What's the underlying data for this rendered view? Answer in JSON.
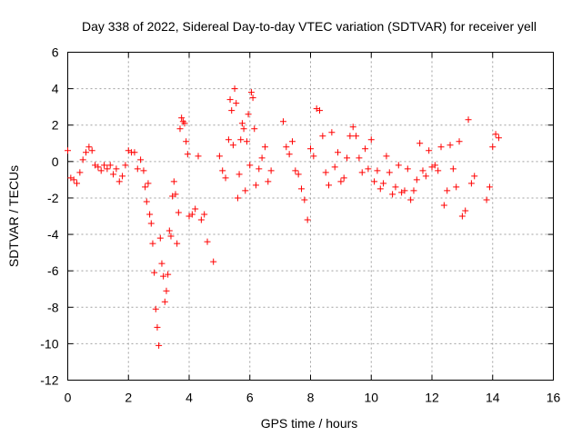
{
  "chart_data": {
    "type": "scatter",
    "title": "Day 338 of 2022, Sidereal Day-to-day VTEC variation (SDTVAR) for receiver yell",
    "xlabel": "GPS time / hours",
    "ylabel": "SDTVAR / TECUs",
    "xlim": [
      0,
      16
    ],
    "ylim": [
      -12,
      6
    ],
    "x_ticks": [
      "0",
      "2",
      "4",
      "6",
      "8",
      "10",
      "12",
      "14",
      "16"
    ],
    "y_ticks": [
      "6",
      "4",
      "2",
      "0",
      "-2",
      "-4",
      "-6",
      "-8",
      "-10",
      "-12"
    ],
    "grid": true,
    "marker": "+",
    "series": [
      {
        "name": "SDTVAR",
        "color": "#ff0000",
        "x": [
          0.0,
          0.1,
          0.2,
          0.3,
          0.4,
          0.5,
          0.6,
          0.7,
          0.8,
          0.9,
          1.0,
          1.1,
          1.2,
          1.3,
          1.4,
          1.5,
          1.6,
          1.7,
          1.8,
          1.9,
          2.0,
          2.1,
          2.2,
          2.3,
          2.4,
          2.5,
          2.55,
          2.6,
          2.65,
          2.7,
          2.75,
          2.8,
          2.85,
          2.9,
          2.95,
          3.0,
          3.05,
          3.1,
          3.15,
          3.2,
          3.25,
          3.3,
          3.35,
          3.4,
          3.45,
          3.5,
          3.55,
          3.6,
          3.65,
          3.7,
          3.75,
          3.8,
          3.85,
          3.9,
          3.95,
          4.0,
          4.1,
          4.2,
          4.3,
          4.4,
          4.5,
          4.6,
          4.8,
          5.0,
          5.1,
          5.2,
          5.3,
          5.35,
          5.4,
          5.45,
          5.5,
          5.55,
          5.6,
          5.65,
          5.7,
          5.75,
          5.8,
          5.85,
          5.9,
          5.95,
          6.0,
          6.05,
          6.1,
          6.15,
          6.2,
          6.3,
          6.4,
          6.5,
          6.6,
          6.7,
          7.1,
          7.2,
          7.3,
          7.4,
          7.5,
          7.6,
          7.7,
          7.8,
          7.9,
          8.0,
          8.1,
          8.2,
          8.3,
          8.4,
          8.5,
          8.6,
          8.7,
          8.8,
          8.9,
          9.0,
          9.1,
          9.2,
          9.3,
          9.4,
          9.5,
          9.6,
          9.7,
          9.8,
          9.9,
          10.0,
          10.1,
          10.2,
          10.3,
          10.4,
          10.5,
          10.6,
          10.7,
          10.8,
          10.9,
          11.0,
          11.1,
          11.2,
          11.3,
          11.4,
          11.5,
          11.6,
          11.7,
          11.8,
          11.9,
          12.0,
          12.1,
          12.2,
          12.3,
          12.4,
          12.5,
          12.6,
          12.7,
          12.8,
          12.9,
          13.0,
          13.1,
          13.2,
          13.3,
          13.4,
          13.8,
          13.9,
          14.0,
          14.1,
          14.2
        ],
        "y": [
          0.6,
          -0.9,
          -1.0,
          -1.2,
          -0.6,
          0.1,
          0.5,
          0.8,
          0.6,
          -0.2,
          -0.3,
          -0.5,
          -0.2,
          -0.4,
          -0.2,
          -0.7,
          -0.4,
          -1.1,
          -0.8,
          -0.2,
          0.6,
          0.5,
          0.5,
          -0.4,
          0.1,
          -0.5,
          -1.4,
          -2.2,
          -1.2,
          -2.9,
          -3.4,
          -4.5,
          -6.1,
          -8.1,
          -9.1,
          -10.1,
          -4.2,
          -5.6,
          -6.3,
          -7.7,
          -7.1,
          -6.2,
          -3.8,
          -4.1,
          -1.9,
          -1.1,
          -1.8,
          -4.5,
          -2.8,
          1.8,
          2.4,
          2.2,
          2.1,
          1.1,
          0.4,
          -3.0,
          -2.9,
          -2.6,
          0.3,
          -3.2,
          -2.9,
          -4.4,
          -5.5,
          0.3,
          -0.5,
          -0.9,
          1.2,
          3.4,
          2.8,
          0.9,
          4.0,
          3.2,
          -2.0,
          -0.7,
          1.2,
          2.1,
          1.8,
          -1.6,
          1.1,
          2.6,
          -0.2,
          3.8,
          3.5,
          1.8,
          -1.3,
          -0.4,
          0.2,
          0.8,
          -1.1,
          -0.5,
          2.2,
          0.8,
          0.4,
          1.1,
          -0.5,
          -0.7,
          -1.5,
          -2.1,
          -3.2,
          0.7,
          0.3,
          2.9,
          2.8,
          1.4,
          -0.6,
          -1.3,
          1.6,
          -0.3,
          0.5,
          -1.1,
          -0.9,
          0.2,
          1.4,
          1.9,
          1.4,
          0.2,
          -0.6,
          0.7,
          -0.4,
          1.2,
          -1.1,
          -0.5,
          -1.5,
          -1.2,
          0.3,
          -0.6,
          -1.8,
          -1.4,
          -0.2,
          -1.7,
          -1.6,
          -0.4,
          -2.1,
          -1.6,
          -1.0,
          1.0,
          -0.5,
          -0.8,
          0.6,
          -0.3,
          -0.2,
          -0.5,
          0.8,
          -2.4,
          -1.6,
          0.9,
          -0.4,
          -1.4,
          1.1,
          -3.0,
          -2.7,
          2.3,
          -1.2,
          -0.8,
          -2.1,
          -1.4,
          0.8,
          1.5,
          1.3
        ]
      }
    ]
  }
}
